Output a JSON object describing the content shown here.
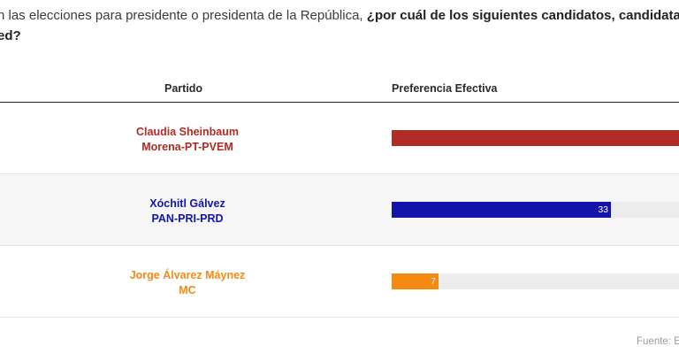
{
  "question": {
    "intro": "n las elecciones para presidente o presidenta de la República, ",
    "bold": "¿por cuál de los siguientes candidatos, candidata",
    "line2": "ed?"
  },
  "table": {
    "col_party": "Partido",
    "col_pref": "Preferencia Efectiva"
  },
  "chart_data": {
    "type": "bar",
    "orientation": "horizontal",
    "xlabel": "Preferencia Efectiva",
    "categories": [
      "Claudia Sheinbaum Morena-PT-PVEM",
      "Xóchitl Gálvez PAN-PRI-PRD",
      "Jorge Álvarez Máynez MC"
    ],
    "rows": [
      {
        "name": "Claudia Sheinbaum",
        "party": "Morena-PT-PVEM",
        "value": 60,
        "label": "",
        "color": "#b22a24"
      },
      {
        "name": "Xóchitl Gálvez",
        "party": "PAN-PRI-PRD",
        "value": 33,
        "label": "33",
        "color": "#1414a8"
      },
      {
        "name": "Jorge Álvarez Máynez",
        "party": "MC",
        "value": 7,
        "label": "7",
        "color": "#f58a12"
      }
    ],
    "xlim": [
      0,
      100
    ]
  },
  "source": "Fuente: E"
}
